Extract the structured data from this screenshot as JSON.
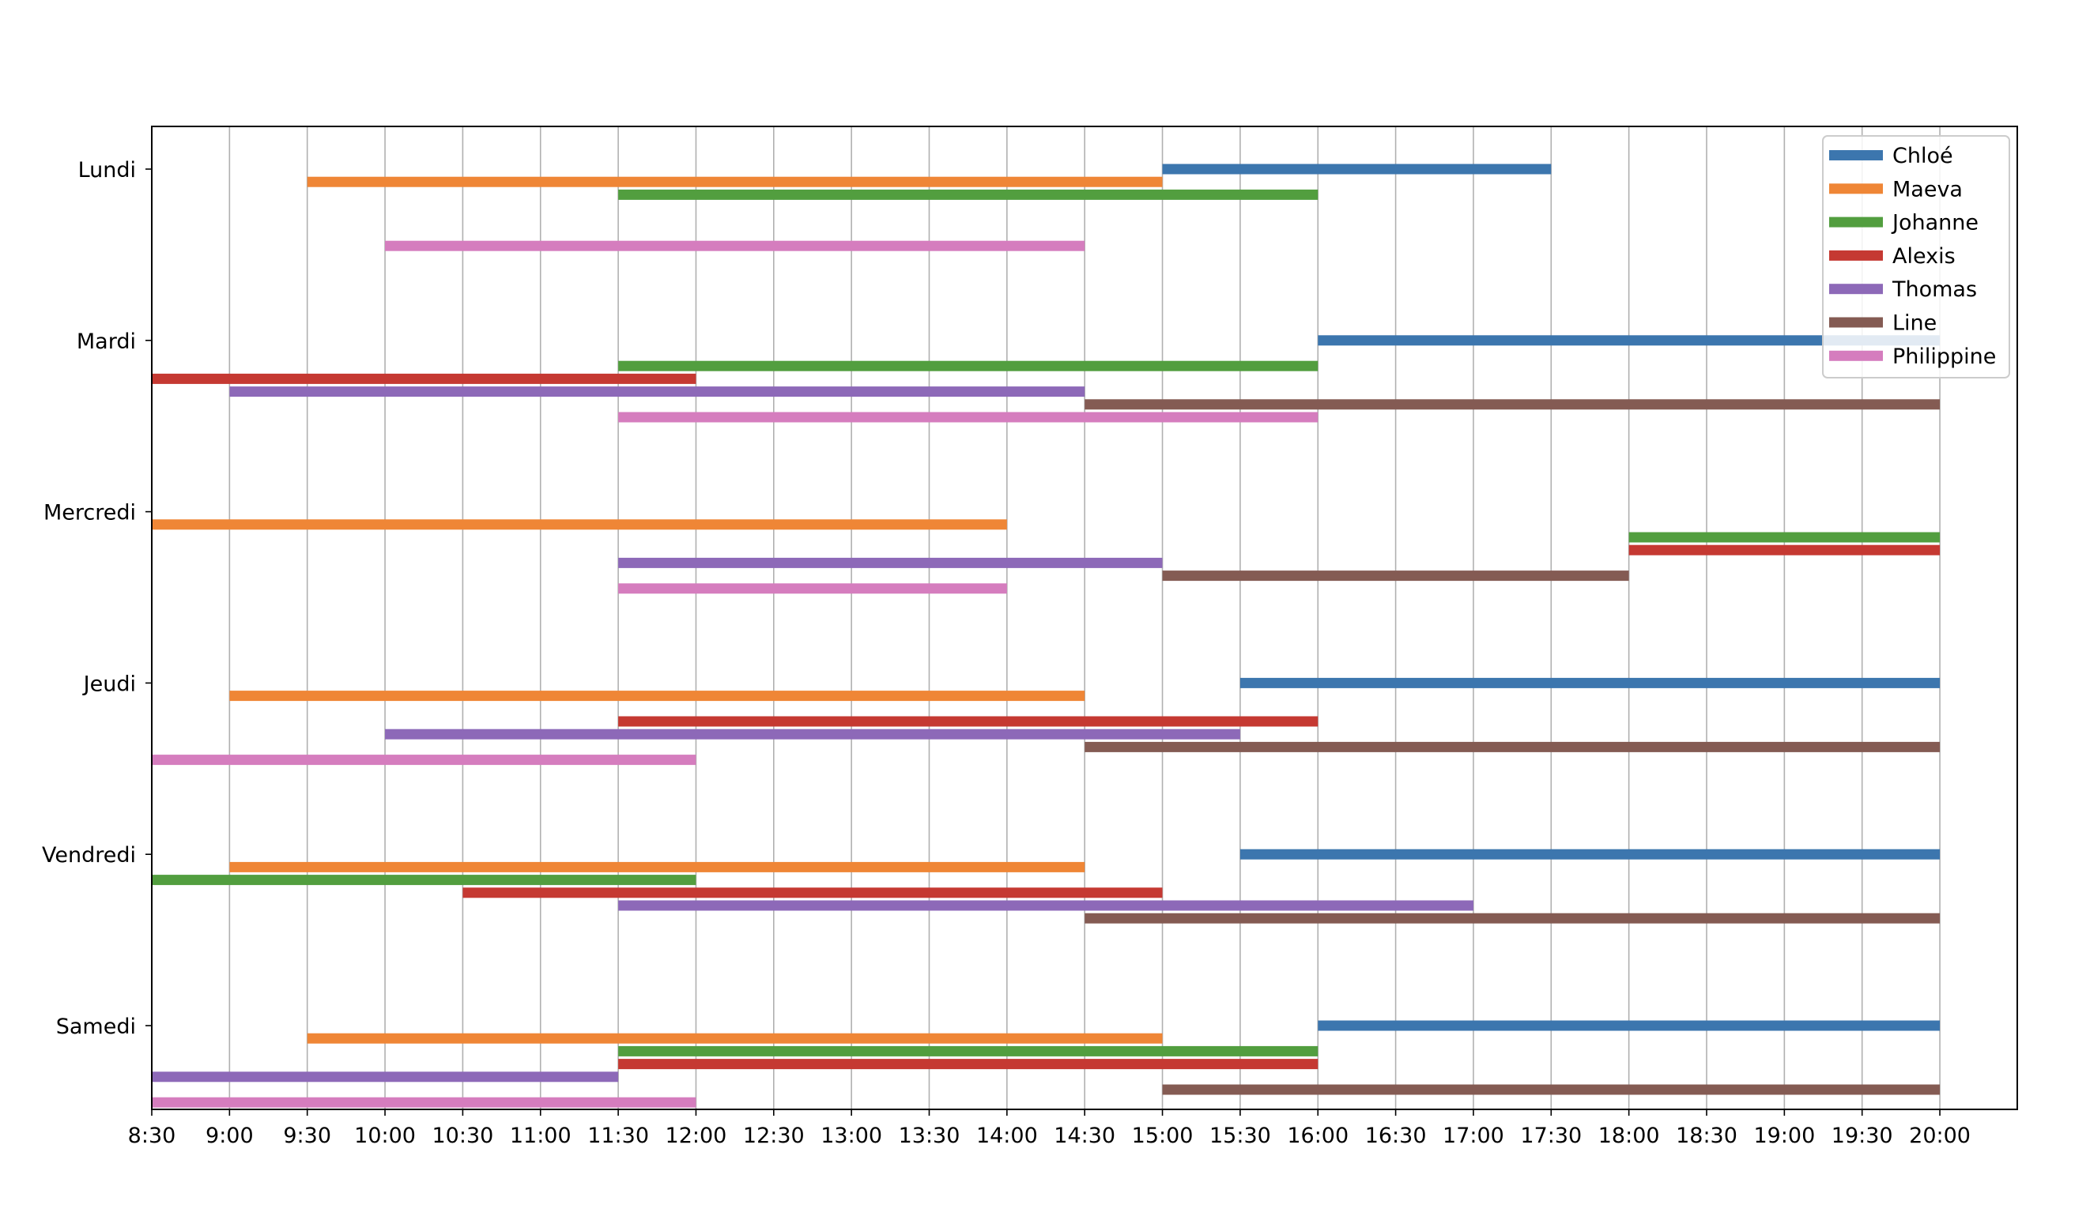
{
  "chart_data": {
    "type": "bar",
    "orientation": "horizontal-timeline",
    "title": "",
    "xlabel": "",
    "ylabel": "",
    "grid": "vertical",
    "legend_position": "top-right",
    "days": [
      "Lundi",
      "Mardi",
      "Mercredi",
      "Jeudi",
      "Vendredi",
      "Samedi"
    ],
    "x_ticks": [
      "8:30",
      "9:00",
      "9:30",
      "10:00",
      "10:30",
      "11:00",
      "11:30",
      "12:00",
      "12:30",
      "13:00",
      "13:30",
      "14:00",
      "14:30",
      "15:00",
      "15:30",
      "16:00",
      "16:30",
      "17:00",
      "17:30",
      "18:00",
      "18:30",
      "19:00",
      "19:30",
      "20:00"
    ],
    "xlim": [
      "8:30",
      "20:30"
    ],
    "series": [
      {
        "name": "Chloé",
        "color": "#3c76ae",
        "shifts": [
          {
            "day": "Lundi",
            "start": "15:00",
            "end": "17:30"
          },
          {
            "day": "Mardi",
            "start": "16:00",
            "end": "20:00"
          },
          {
            "day": "Jeudi",
            "start": "15:30",
            "end": "20:00"
          },
          {
            "day": "Vendredi",
            "start": "15:30",
            "end": "20:00"
          },
          {
            "day": "Samedi",
            "start": "16:00",
            "end": "20:00"
          }
        ]
      },
      {
        "name": "Maeva",
        "color": "#ef8636",
        "shifts": [
          {
            "day": "Lundi",
            "start": "9:30",
            "end": "15:00"
          },
          {
            "day": "Mercredi",
            "start": "8:30",
            "end": "14:00"
          },
          {
            "day": "Jeudi",
            "start": "9:00",
            "end": "14:30"
          },
          {
            "day": "Vendredi",
            "start": "9:00",
            "end": "14:30"
          },
          {
            "day": "Samedi",
            "start": "9:30",
            "end": "15:00"
          }
        ]
      },
      {
        "name": "Johanne",
        "color": "#529e3f",
        "shifts": [
          {
            "day": "Lundi",
            "start": "11:30",
            "end": "16:00"
          },
          {
            "day": "Mardi",
            "start": "11:30",
            "end": "16:00"
          },
          {
            "day": "Mercredi",
            "start": "18:00",
            "end": "20:00"
          },
          {
            "day": "Vendredi",
            "start": "8:30",
            "end": "12:00"
          },
          {
            "day": "Samedi",
            "start": "11:30",
            "end": "16:00"
          }
        ]
      },
      {
        "name": "Alexis",
        "color": "#c53932",
        "shifts": [
          {
            "day": "Mardi",
            "start": "8:30",
            "end": "12:00"
          },
          {
            "day": "Mercredi",
            "start": "18:00",
            "end": "20:00"
          },
          {
            "day": "Jeudi",
            "start": "11:30",
            "end": "16:00"
          },
          {
            "day": "Vendredi",
            "start": "10:30",
            "end": "15:00"
          },
          {
            "day": "Samedi",
            "start": "11:30",
            "end": "16:00"
          }
        ]
      },
      {
        "name": "Thomas",
        "color": "#8d69b8",
        "shifts": [
          {
            "day": "Mardi",
            "start": "9:00",
            "end": "14:30"
          },
          {
            "day": "Mercredi",
            "start": "11:30",
            "end": "15:00"
          },
          {
            "day": "Jeudi",
            "start": "10:00",
            "end": "15:30"
          },
          {
            "day": "Vendredi",
            "start": "11:30",
            "end": "17:00"
          },
          {
            "day": "Samedi",
            "start": "8:30",
            "end": "11:30"
          }
        ]
      },
      {
        "name": "Line",
        "color": "#845b53",
        "shifts": [
          {
            "day": "Mardi",
            "start": "14:30",
            "end": "20:00"
          },
          {
            "day": "Mercredi",
            "start": "15:00",
            "end": "18:00"
          },
          {
            "day": "Jeudi",
            "start": "14:30",
            "end": "20:00"
          },
          {
            "day": "Vendredi",
            "start": "14:30",
            "end": "20:00"
          },
          {
            "day": "Samedi",
            "start": "15:00",
            "end": "20:00"
          }
        ]
      },
      {
        "name": "Philippine",
        "color": "#d57dbe",
        "shifts": [
          {
            "day": "Lundi",
            "start": "10:00",
            "end": "14:30"
          },
          {
            "day": "Mardi",
            "start": "11:30",
            "end": "16:00"
          },
          {
            "day": "Mercredi",
            "start": "11:30",
            "end": "14:00"
          },
          {
            "day": "Jeudi",
            "start": "8:30",
            "end": "12:00"
          },
          {
            "day": "Samedi",
            "start": "8:30",
            "end": "12:00"
          }
        ]
      }
    ]
  }
}
